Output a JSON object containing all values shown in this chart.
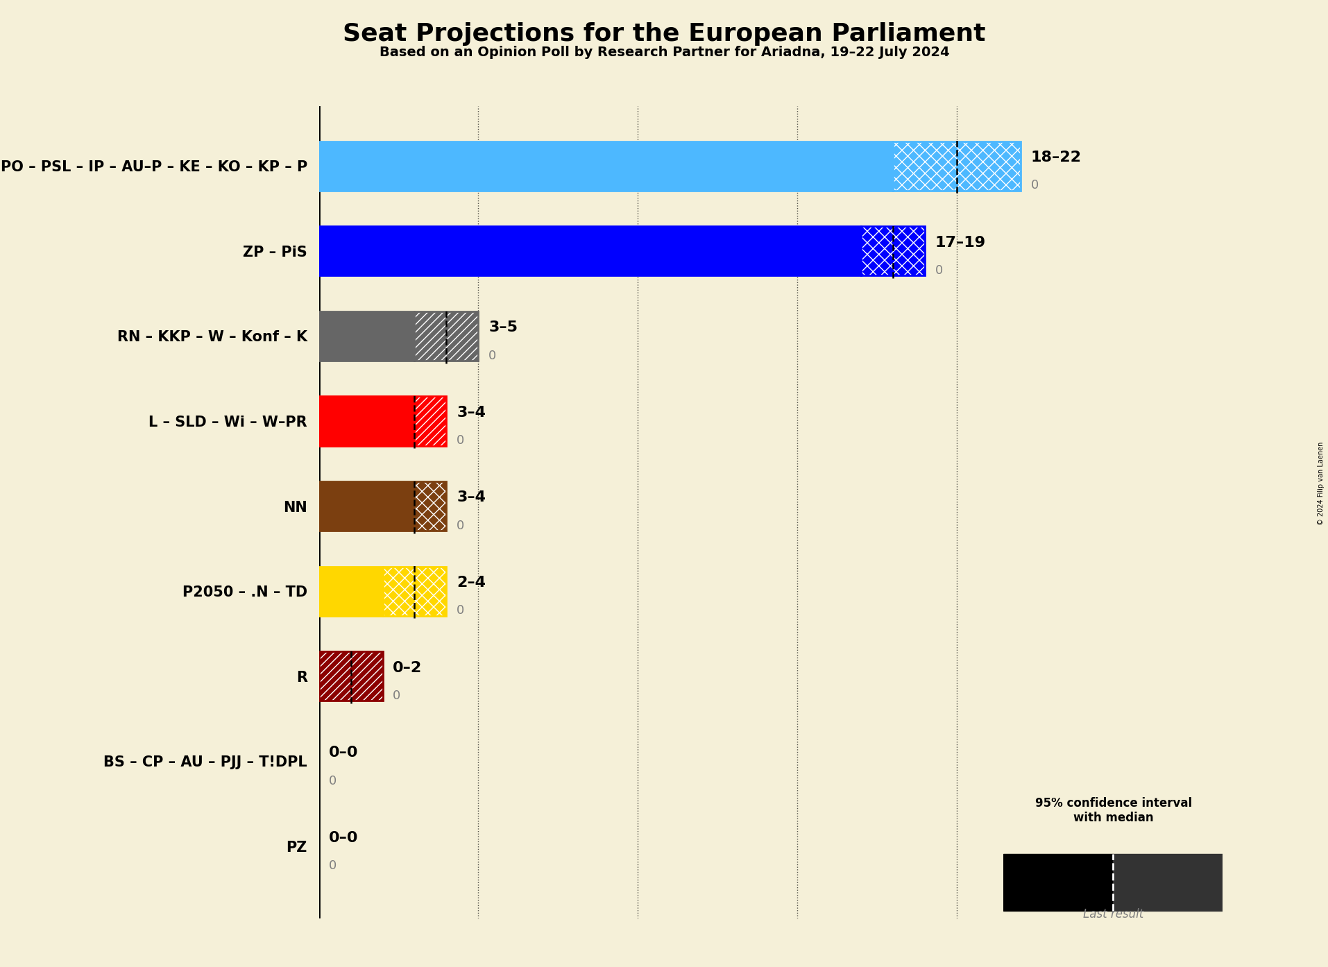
{
  "title": "Seat Projections for the European Parliament",
  "subtitle": "Based on an Opinion Poll by Research Partner for Ariadna, 19–22 July 2024",
  "background_color": "#f5f0d8",
  "parties": [
    {
      "label": "PO – PSL – IP – AU–P – KE – KO – KP – P",
      "low": 18,
      "high": 22,
      "median": 20,
      "last": 0,
      "color": "#4db8ff",
      "hatch_solid": "",
      "hatch_extra": "xx",
      "range_text": "18–22"
    },
    {
      "label": "ZP – PiS",
      "low": 17,
      "high": 19,
      "median": 18,
      "last": 0,
      "color": "#0000ff",
      "hatch_solid": "",
      "hatch_extra": "xx",
      "range_text": "17–19"
    },
    {
      "label": "RN – KKP – W – Konf – K",
      "low": 3,
      "high": 5,
      "median": 4,
      "last": 0,
      "color": "#666666",
      "hatch_solid": "",
      "hatch_extra": "///",
      "range_text": "3–5"
    },
    {
      "label": "L – SLD – Wi – W–PR",
      "low": 3,
      "high": 4,
      "median": 3,
      "last": 0,
      "color": "#ff0000",
      "hatch_solid": "",
      "hatch_extra": "///",
      "range_text": "3–4"
    },
    {
      "label": "NN",
      "low": 3,
      "high": 4,
      "median": 3,
      "last": 0,
      "color": "#7b3f10",
      "hatch_solid": "",
      "hatch_extra": "xx",
      "range_text": "3–4"
    },
    {
      "label": "P2050 – .N – TD",
      "low": 2,
      "high": 4,
      "median": 3,
      "last": 0,
      "color": "#ffd700",
      "hatch_solid": "",
      "hatch_extra": "xx",
      "range_text": "2–4"
    },
    {
      "label": "R",
      "low": 0,
      "high": 2,
      "median": 1,
      "last": 0,
      "color": "#8b0000",
      "hatch_solid": "xx",
      "hatch_extra": "///",
      "range_text": "0–2"
    },
    {
      "label": "BS – CP – AU – PJJ – T!DPL",
      "low": 0,
      "high": 0,
      "median": 0,
      "last": 0,
      "color": "#888888",
      "hatch_solid": "",
      "hatch_extra": "",
      "range_text": "0–0"
    },
    {
      "label": "PZ",
      "low": 0,
      "high": 0,
      "median": 0,
      "last": 0,
      "color": "#888888",
      "hatch_solid": "",
      "hatch_extra": "",
      "range_text": "0–0"
    }
  ],
  "xlim_max": 25,
  "ref_lines": [
    5,
    10,
    15,
    20
  ],
  "copyright": "© 2024 Filip van Laenen"
}
